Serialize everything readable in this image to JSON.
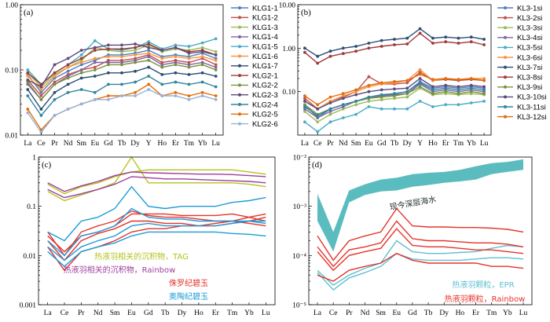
{
  "chart_data": [
    {
      "panel": "(a)",
      "type": "line",
      "log_y": true,
      "categories": [
        "La",
        "Ce",
        "Pr",
        "Nd",
        "Sm",
        "Eu",
        "Gd",
        "Tb",
        "Dy",
        "Y",
        "Ho",
        "Er",
        "Tm",
        "Yb",
        "Lu"
      ],
      "y_ticks": [
        "0.01",
        "0.10",
        "1.00"
      ],
      "ylim": [
        0.01,
        1.0
      ],
      "legend_position": "right",
      "series": [
        {
          "name": "KLG1-1",
          "color": "#4e7fc0",
          "values": [
            0.085,
            0.045,
            0.075,
            0.095,
            0.12,
            0.14,
            0.17,
            0.17,
            0.18,
            0.2,
            0.16,
            0.17,
            0.16,
            0.18,
            0.15
          ]
        },
        {
          "name": "KLG1-2",
          "color": "#c0504d",
          "values": [
            0.07,
            0.04,
            0.065,
            0.085,
            0.1,
            0.11,
            0.14,
            0.14,
            0.15,
            0.17,
            0.13,
            0.14,
            0.13,
            0.15,
            0.12
          ]
        },
        {
          "name": "KLG1-3",
          "color": "#9bbb59",
          "values": [
            0.09,
            0.055,
            0.085,
            0.11,
            0.14,
            0.22,
            0.2,
            0.19,
            0.2,
            0.24,
            0.19,
            0.21,
            0.2,
            0.22,
            0.19
          ]
        },
        {
          "name": "KLG1-4",
          "color": "#8064a2",
          "values": [
            0.06,
            0.035,
            0.06,
            0.08,
            0.1,
            0.13,
            0.13,
            0.13,
            0.14,
            0.16,
            0.12,
            0.13,
            0.12,
            0.13,
            0.11
          ]
        },
        {
          "name": "KLG1-5",
          "color": "#4bacc6",
          "values": [
            0.1,
            0.06,
            0.09,
            0.12,
            0.17,
            0.28,
            0.21,
            0.2,
            0.22,
            0.27,
            0.21,
            0.24,
            0.23,
            0.26,
            0.3
          ]
        },
        {
          "name": "KLG1-6",
          "color": "#f79646",
          "values": [
            0.08,
            0.05,
            0.08,
            0.11,
            0.13,
            0.15,
            0.16,
            0.16,
            0.17,
            0.18,
            0.15,
            0.16,
            0.15,
            0.16,
            0.14
          ]
        },
        {
          "name": "KLG1-7",
          "color": "#2c4d75",
          "values": [
            0.05,
            0.025,
            0.045,
            0.06,
            0.075,
            0.08,
            0.09,
            0.09,
            0.095,
            0.11,
            0.085,
            0.09,
            0.085,
            0.09,
            0.08
          ]
        },
        {
          "name": "KLG2-1",
          "color": "#9e3a38",
          "values": [
            0.09,
            0.06,
            0.09,
            0.12,
            0.15,
            0.2,
            0.21,
            0.21,
            0.22,
            0.25,
            0.2,
            0.22,
            0.19,
            0.2,
            0.17
          ]
        },
        {
          "name": "KLG2-2",
          "color": "#77933c",
          "values": [
            0.065,
            0.035,
            0.06,
            0.075,
            0.09,
            0.1,
            0.12,
            0.12,
            0.13,
            0.14,
            0.11,
            0.12,
            0.11,
            0.12,
            0.1
          ]
        },
        {
          "name": "KLG2-3",
          "color": "#5f497a",
          "values": [
            0.07,
            0.055,
            0.12,
            0.15,
            0.2,
            0.22,
            0.24,
            0.24,
            0.25,
            0.22,
            0.2,
            0.22,
            0.18,
            0.19,
            0.17
          ]
        },
        {
          "name": "KLG2-4",
          "color": "#31859c",
          "values": [
            0.04,
            0.02,
            0.035,
            0.045,
            0.05,
            0.045,
            0.06,
            0.06,
            0.065,
            0.08,
            0.06,
            0.065,
            0.06,
            0.065,
            0.055
          ]
        },
        {
          "name": "KLG2-5",
          "color": "#e46c0a",
          "values": [
            0.025,
            0.012,
            0.02,
            0.025,
            0.03,
            0.035,
            0.04,
            0.04,
            0.045,
            0.06,
            0.04,
            0.045,
            0.04,
            0.045,
            0.04
          ]
        },
        {
          "name": "KLG2-6",
          "color": "#95b3d7",
          "values": [
            0.022,
            0.011,
            0.02,
            0.025,
            0.03,
            0.035,
            0.035,
            0.04,
            0.04,
            0.05,
            0.04,
            0.04,
            0.035,
            0.04,
            0.035
          ]
        }
      ]
    },
    {
      "panel": "(b)",
      "type": "line",
      "log_y": true,
      "categories": [
        "La",
        "Ce",
        "Pr",
        "Nd",
        "Sm",
        "Eu",
        "Gd",
        "Tb",
        "Dy",
        "Y",
        "Ho",
        "Er",
        "Tm",
        "Yb",
        "Lu"
      ],
      "y_ticks": [
        "0.10",
        "1.00",
        "10.00"
      ],
      "ylim": [
        0.01,
        10.0
      ],
      "legend_position": "right",
      "series": [
        {
          "name": "KL3-1si",
          "color": "#4e7fc0",
          "values": [
            0.05,
            0.025,
            0.04,
            0.05,
            0.06,
            0.07,
            0.08,
            0.09,
            0.1,
            0.17,
            0.12,
            0.13,
            0.12,
            0.13,
            0.12
          ]
        },
        {
          "name": "KL3-2si",
          "color": "#c0504d",
          "values": [
            0.07,
            0.04,
            0.06,
            0.075,
            0.1,
            0.22,
            0.15,
            0.15,
            0.16,
            0.28,
            0.18,
            0.19,
            0.18,
            0.19,
            0.18
          ]
        },
        {
          "name": "KL3-3si",
          "color": "#9bbb59",
          "values": [
            0.035,
            0.02,
            0.03,
            0.04,
            0.05,
            0.06,
            0.065,
            0.07,
            0.075,
            0.12,
            0.085,
            0.09,
            0.085,
            0.09,
            0.085
          ]
        },
        {
          "name": "KL3-4si",
          "color": "#8064a2",
          "values": [
            0.04,
            0.025,
            0.035,
            0.045,
            0.06,
            0.07,
            0.08,
            0.085,
            0.09,
            0.15,
            0.1,
            0.11,
            0.1,
            0.11,
            0.1
          ]
        },
        {
          "name": "KL3-5si",
          "color": "#4bacc6",
          "values": [
            0.02,
            0.012,
            0.02,
            0.025,
            0.03,
            0.045,
            0.04,
            0.04,
            0.04,
            0.06,
            0.045,
            0.05,
            0.05,
            0.055,
            0.06
          ]
        },
        {
          "name": "KL3-6si",
          "color": "#f79646",
          "values": [
            0.06,
            0.04,
            0.06,
            0.08,
            0.1,
            0.13,
            0.15,
            0.16,
            0.18,
            0.32,
            0.18,
            0.2,
            0.19,
            0.2,
            0.2
          ]
        },
        {
          "name": "KL3-7si",
          "color": "#2c4d75",
          "values": [
            1.0,
            0.65,
            0.85,
            1.0,
            1.1,
            1.3,
            1.5,
            1.6,
            1.7,
            2.8,
            1.7,
            1.8,
            1.7,
            1.8,
            1.6
          ]
        },
        {
          "name": "KL3-8si",
          "color": "#9e3a38",
          "values": [
            0.8,
            0.45,
            0.65,
            0.75,
            0.85,
            1.0,
            1.1,
            1.2,
            1.25,
            2.2,
            1.3,
            1.4,
            1.3,
            1.4,
            1.2
          ]
        },
        {
          "name": "KL3-9si",
          "color": "#77933c",
          "values": [
            0.05,
            0.03,
            0.04,
            0.05,
            0.06,
            0.07,
            0.075,
            0.08,
            0.09,
            0.13,
            0.09,
            0.1,
            0.09,
            0.1,
            0.09
          ]
        },
        {
          "name": "KL3-10si",
          "color": "#5f497a",
          "values": [
            0.06,
            0.04,
            0.055,
            0.07,
            0.085,
            0.1,
            0.11,
            0.115,
            0.12,
            0.2,
            0.13,
            0.14,
            0.13,
            0.14,
            0.13
          ]
        },
        {
          "name": "KL3-11si",
          "color": "#31859c",
          "values": [
            0.045,
            0.028,
            0.04,
            0.05,
            0.06,
            0.075,
            0.085,
            0.09,
            0.1,
            0.16,
            0.11,
            0.12,
            0.11,
            0.12,
            0.11
          ]
        },
        {
          "name": "KL3-12si",
          "color": "#e46c0a",
          "values": [
            0.08,
            0.05,
            0.075,
            0.09,
            0.11,
            0.14,
            0.16,
            0.17,
            0.18,
            0.25,
            0.19,
            0.2,
            0.19,
            0.2,
            0.18
          ]
        }
      ]
    },
    {
      "panel": "(c)",
      "type": "line",
      "log_y": true,
      "categories": [
        "La",
        "Ce",
        "Pr",
        "Nd",
        "Sm",
        "Eu",
        "Gd",
        "Tb",
        "Dy",
        "Ho",
        "Er",
        "Tm",
        "Yb",
        "Lu"
      ],
      "y_ticks": [
        "0.001",
        "0.01",
        "0.1",
        "1"
      ],
      "ylim": [
        0.001,
        1.0
      ],
      "legend_position": "bottom-center",
      "series": [
        {
          "name": "热液羽相关的沉积物，TAG",
          "color": "#b5c21f",
          "values": [
            0.2,
            0.13,
            0.17,
            0.22,
            0.3,
            1.0,
            0.3,
            0.3,
            0.3,
            0.3,
            0.3,
            0.3,
            0.28,
            0.25
          ]
        },
        {
          "name": "",
          "color": "#b5c21f",
          "values": [
            0.28,
            0.18,
            0.25,
            0.3,
            0.4,
            0.5,
            0.55,
            0.55,
            0.55,
            0.55,
            0.55,
            0.55,
            0.5,
            0.45
          ]
        },
        {
          "name": "热液羽相关的沉积物，Rainbow",
          "color": "#9e3f9c",
          "values": [
            0.22,
            0.15,
            0.18,
            0.22,
            0.28,
            0.4,
            0.38,
            0.36,
            0.36,
            0.35,
            0.34,
            0.33,
            0.32,
            0.3
          ]
        },
        {
          "name": "",
          "color": "#9e3f9c",
          "values": [
            0.3,
            0.2,
            0.26,
            0.32,
            0.42,
            0.5,
            0.48,
            0.47,
            0.46,
            0.45,
            0.45,
            0.44,
            0.42,
            0.4
          ]
        },
        {
          "name": "侏罗纪碧玉",
          "color": "#e5332a",
          "values": [
            0.03,
            0.01,
            0.03,
            0.04,
            0.05,
            0.08,
            0.065,
            0.06,
            0.06,
            0.055,
            0.05,
            0.05,
            0.045,
            0.04
          ]
        },
        {
          "name": "",
          "color": "#e5332a",
          "values": [
            0.02,
            0.008,
            0.02,
            0.028,
            0.035,
            0.05,
            0.05,
            0.045,
            0.045,
            0.04,
            0.04,
            0.045,
            0.05,
            0.06
          ]
        },
        {
          "name": "",
          "color": "#e5332a",
          "values": [
            0.015,
            0.005,
            0.012,
            0.015,
            0.02,
            0.03,
            0.035,
            0.035,
            0.04,
            0.04,
            0.045,
            0.05,
            0.06,
            0.07
          ]
        },
        {
          "name": "",
          "color": "#e5332a",
          "values": [
            0.025,
            0.012,
            0.025,
            0.03,
            0.04,
            0.07,
            0.07,
            0.07,
            0.065,
            0.065,
            0.065,
            0.07,
            0.06,
            0.05
          ]
        },
        {
          "name": "奥陶纪碧玉",
          "color": "#1e9bd7",
          "values": [
            0.03,
            0.02,
            0.05,
            0.06,
            0.09,
            0.25,
            0.1,
            0.09,
            0.1,
            0.1,
            0.1,
            0.12,
            0.13,
            0.15
          ]
        },
        {
          "name": "",
          "color": "#1e9bd7",
          "values": [
            0.02,
            0.01,
            0.025,
            0.03,
            0.04,
            0.09,
            0.06,
            0.055,
            0.055,
            0.05,
            0.05,
            0.05,
            0.05,
            0.045
          ]
        },
        {
          "name": "",
          "color": "#1e9bd7",
          "values": [
            0.015,
            0.008,
            0.015,
            0.02,
            0.025,
            0.04,
            0.045,
            0.04,
            0.04,
            0.04,
            0.04,
            0.045,
            0.05,
            0.05
          ]
        },
        {
          "name": "",
          "color": "#1e9bd7",
          "values": [
            0.012,
            0.006,
            0.012,
            0.015,
            0.018,
            0.025,
            0.03,
            0.03,
            0.03,
            0.03,
            0.03,
            0.028,
            0.027,
            0.025
          ]
        }
      ]
    },
    {
      "panel": "(d)",
      "type": "line",
      "log_y": true,
      "categories": [
        "La",
        "Ce",
        "Pr",
        "Nd",
        "Sm",
        "Eu",
        "Gd",
        "Tb",
        "Dy",
        "Ho",
        "Er",
        "Tm",
        "Yb",
        "Lu"
      ],
      "y_ticks": [
        "10⁻⁵",
        "10⁻⁴",
        "10⁻³",
        "10⁻²"
      ],
      "ylim": [
        1e-05,
        0.01
      ],
      "legend_position": "bottom-right",
      "band": {
        "label": "现今深层海水",
        "color": "#5bbcbf",
        "lower": [
          0.0005,
          0.00012,
          0.0012,
          0.0017,
          0.002,
          0.0021,
          0.0025,
          0.0027,
          0.003,
          0.0032,
          0.0035,
          0.0045,
          0.005,
          0.0055
        ],
        "upper": [
          0.0018,
          0.0003,
          0.0021,
          0.0028,
          0.0035,
          0.0038,
          0.0045,
          0.0048,
          0.005,
          0.0055,
          0.0065,
          0.0075,
          0.008,
          0.009
        ]
      },
      "series": [
        {
          "name": "热液羽颗粒，EPR",
          "color": "#5fbfd0",
          "values": [
            5e-05,
            2.5e-05,
            4e-05,
            5.5e-05,
            7e-05,
            0.0002,
            0.00012,
            0.00011,
            0.00011,
            0.000115,
            0.00012,
            0.00014,
            0.00016,
            0.00015
          ]
        },
        {
          "name": "",
          "color": "#5fbfd0",
          "values": [
            4.5e-05,
            2e-05,
            3.5e-05,
            4.5e-05,
            6e-05,
            0.00011,
            8.5e-05,
            8e-05,
            8e-05,
            8e-05,
            8.5e-05,
            9e-05,
            9e-05,
            8.5e-05
          ]
        },
        {
          "name": "热液羽颗粒，Rainbow",
          "color": "#e5332a",
          "values": [
            0.00025,
            8e-05,
            0.0002,
            0.00025,
            0.0003,
            0.0009,
            0.0004,
            0.00038,
            0.00038,
            0.00037,
            0.00037,
            0.00036,
            0.00034,
            0.0003
          ]
        },
        {
          "name": "",
          "color": "#e5332a",
          "values": [
            0.00015,
            6e-05,
            0.00013,
            0.00015,
            0.00018,
            0.0005,
            0.00022,
            0.0002,
            0.0002,
            0.00019,
            0.00018,
            0.00018,
            0.00017,
            0.00015
          ]
        },
        {
          "name": "",
          "color": "#e5332a",
          "values": [
            0.00012,
            5e-05,
            0.0001,
            0.00012,
            0.00014,
            0.00035,
            0.00016,
            0.00015,
            0.00015,
            0.00014,
            0.00013,
            0.00013,
            0.00012,
            0.00011
          ]
        },
        {
          "name": "",
          "color": "#e5332a",
          "values": [
            4e-05,
            3e-05,
            5e-05,
            6e-05,
            7e-05,
            0.00011,
            8e-05,
            7e-05,
            7e-05,
            7e-05,
            7e-05,
            6e-05,
            6e-05,
            5.5e-05
          ]
        }
      ]
    }
  ]
}
